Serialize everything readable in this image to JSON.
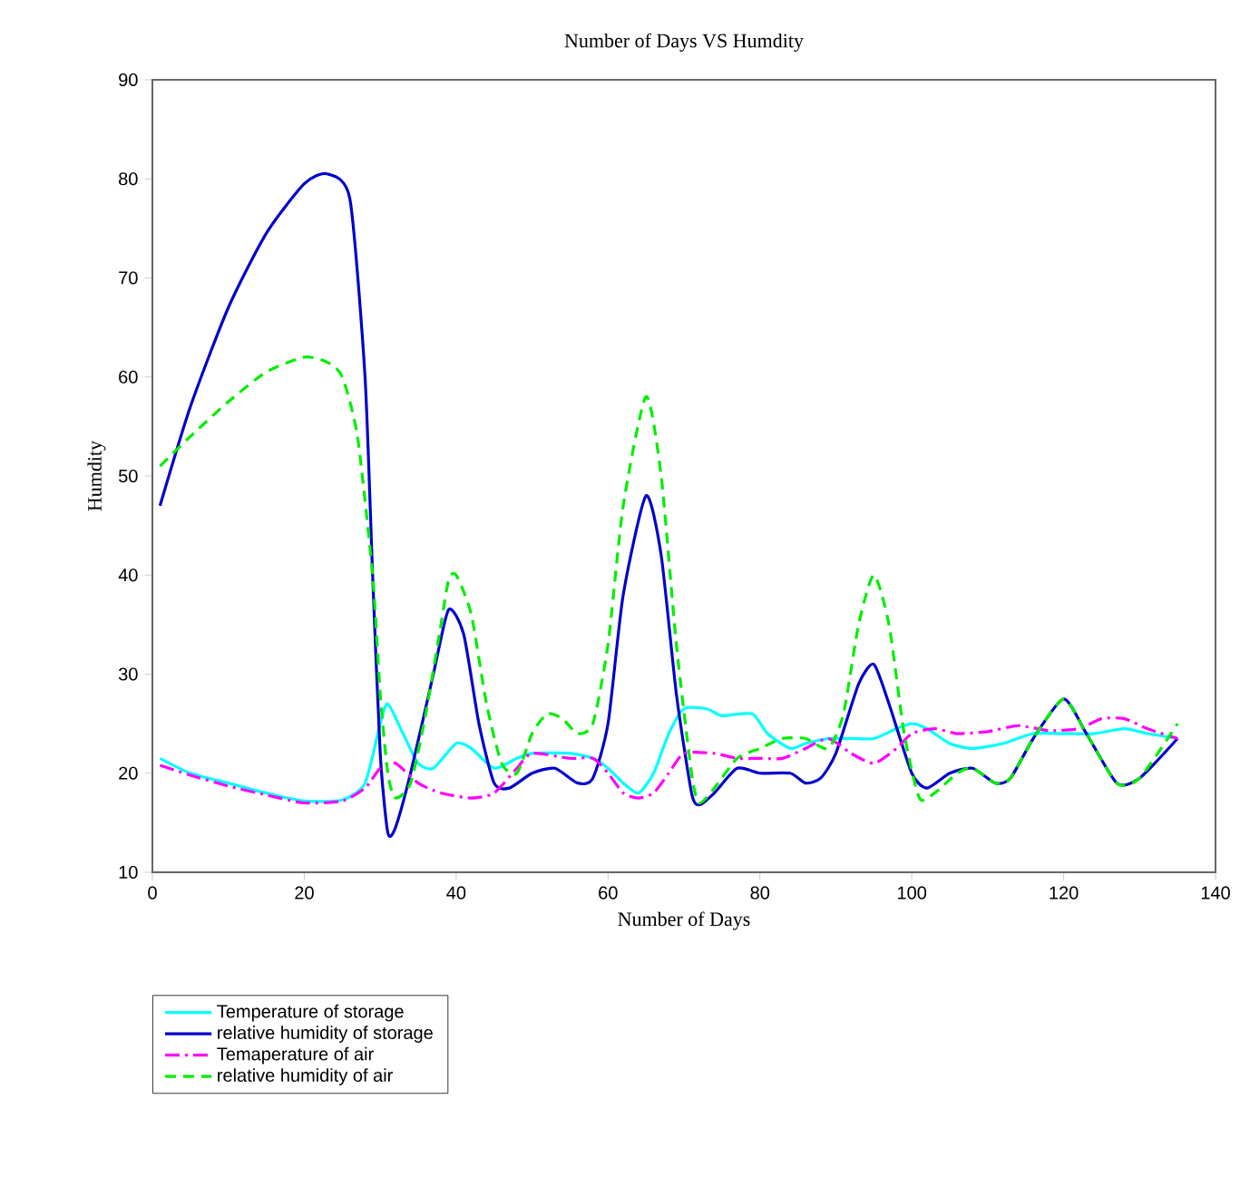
{
  "chart_data": {
    "type": "line",
    "title": "Number of Days VS Humdity",
    "xlabel": "Number of Days",
    "ylabel": "Humdity",
    "xlim": [
      0,
      140
    ],
    "xticks": [
      0,
      20,
      40,
      60,
      80,
      100,
      120,
      140
    ],
    "ylim": [
      10,
      90
    ],
    "yticks": [
      10,
      20,
      30,
      40,
      50,
      60,
      70,
      80,
      90
    ],
    "grid": false,
    "legend": "bottom left",
    "marker": "none",
    "series": [
      {
        "name": "Temperature of storage",
        "color": "#00ffff",
        "line_style": "solid",
        "x": [
          1,
          5,
          10,
          15,
          20,
          25,
          28,
          30,
          31,
          33,
          35,
          37,
          40,
          42,
          45,
          48,
          50,
          55,
          58,
          60,
          62,
          64,
          66,
          68,
          70,
          73,
          75,
          79,
          81,
          84,
          86,
          89,
          92,
          95,
          98,
          100,
          102,
          105,
          108,
          112,
          116,
          120,
          124,
          128,
          131,
          135
        ],
        "values": [
          21.5,
          20,
          19,
          18,
          17.2,
          17.3,
          19,
          25,
          27,
          24,
          21,
          20.5,
          23,
          22.5,
          20.5,
          21.5,
          22,
          22,
          21.5,
          20.5,
          19,
          18,
          20,
          24,
          26.5,
          26.5,
          25.8,
          26,
          24,
          22.5,
          23,
          23.5,
          23.5,
          23.5,
          24.5,
          25,
          24.5,
          23,
          22.5,
          23,
          24,
          24,
          24,
          24.5,
          24,
          23.5
        ]
      },
      {
        "name": "relative humidity of storage",
        "color": "#0000cc",
        "line_style": "solid",
        "x": [
          1,
          5,
          10,
          15,
          20,
          23,
          26,
          28,
          29,
          30,
          31,
          32,
          34,
          37,
          39,
          41,
          43,
          45,
          47,
          50,
          53,
          56,
          58,
          60,
          62,
          65,
          67,
          69,
          71,
          72,
          74,
          77,
          80,
          84,
          86,
          88,
          90,
          93,
          95,
          97,
          100,
          102,
          105,
          108,
          111,
          113,
          116,
          120,
          123,
          127,
          130,
          135
        ],
        "values": [
          47,
          57,
          67,
          74.5,
          79.5,
          80.5,
          78,
          60,
          40,
          22,
          14,
          14.5,
          20,
          30,
          36.5,
          34,
          25,
          19,
          18.5,
          20,
          20.5,
          19,
          19.5,
          25,
          38,
          48,
          42,
          28,
          18,
          16.8,
          18,
          20.5,
          20,
          20,
          19,
          19.5,
          22,
          29,
          31,
          27,
          20,
          18.5,
          20,
          20.5,
          19,
          19.5,
          23.5,
          27.5,
          24,
          19,
          19.5,
          23.5
        ]
      },
      {
        "name": "Temaperature of air",
        "color": "#ff00ff",
        "line_style": "dashdot",
        "x": [
          1,
          5,
          10,
          15,
          20,
          25,
          28,
          30,
          32,
          35,
          38,
          42,
          45,
          48,
          50,
          55,
          58,
          60,
          62,
          64,
          66,
          68,
          70,
          74,
          77,
          80,
          83,
          86,
          89,
          92,
          95,
          98,
          100,
          103,
          106,
          110,
          114,
          118,
          122,
          125,
          128,
          131,
          135
        ],
        "values": [
          20.8,
          19.8,
          18.7,
          17.8,
          17,
          17.2,
          18.5,
          20.5,
          21,
          19,
          18,
          17.5,
          18,
          20.5,
          22,
          21.5,
          21.5,
          20,
          18,
          17.5,
          18,
          20,
          22,
          22,
          21.5,
          21.5,
          21.5,
          22.5,
          23.5,
          22,
          21,
          22.5,
          24,
          24.5,
          24,
          24.2,
          24.8,
          24.3,
          24.5,
          25.5,
          25.5,
          24.5,
          23.5
        ]
      },
      {
        "name": "relative humidity of air",
        "color": "#00ee00",
        "line_style": "dashed",
        "x": [
          1,
          5,
          10,
          15,
          20,
          23,
          25,
          27,
          29,
          30,
          31,
          32,
          34,
          36,
          38,
          39,
          40,
          42,
          44,
          46,
          48,
          50,
          52,
          54,
          56,
          58,
          60,
          62,
          65,
          67,
          69,
          71,
          72,
          74,
          77,
          80,
          83,
          86,
          89,
          91,
          93,
          95,
          97,
          99,
          101,
          103,
          106,
          108,
          111,
          113,
          116,
          120,
          123,
          127,
          130,
          135
        ],
        "values": [
          51,
          54,
          57.5,
          60.5,
          62,
          61.5,
          60,
          54,
          40,
          28,
          20,
          17.5,
          19,
          26,
          35,
          39.5,
          40,
          36,
          27,
          21,
          20,
          24,
          26,
          25.5,
          24,
          25,
          33,
          47,
          58,
          50,
          33,
          20,
          17,
          18.5,
          21.5,
          22.5,
          23.5,
          23.5,
          22.5,
          26,
          35,
          40,
          35,
          24,
          17.5,
          18,
          20,
          20.5,
          19,
          19.5,
          23.5,
          27.5,
          24,
          19,
          19.5,
          25
        ]
      }
    ]
  }
}
